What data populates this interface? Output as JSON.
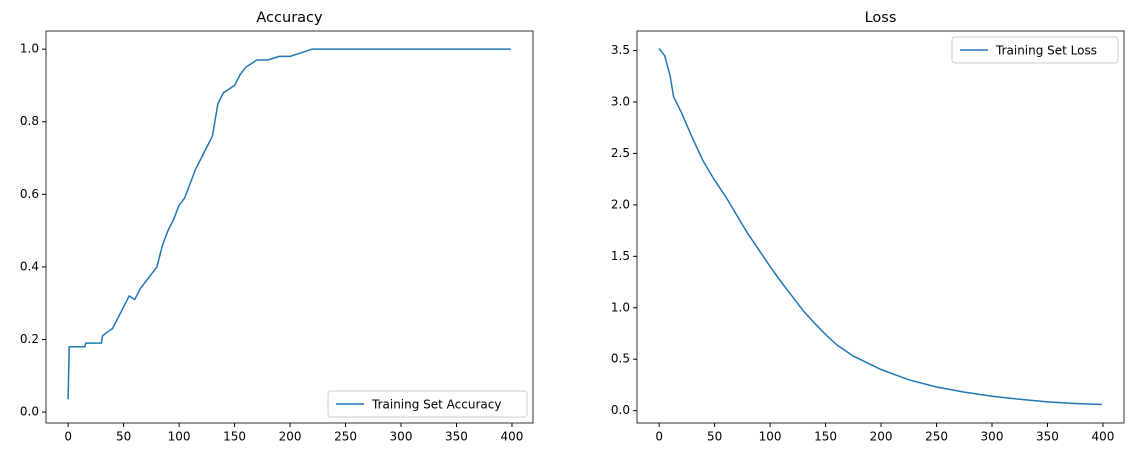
{
  "chart_data": [
    {
      "type": "line",
      "title": "Accuracy",
      "x": [
        0,
        1,
        15,
        16,
        30,
        31,
        35,
        40,
        45,
        50,
        55,
        60,
        65,
        70,
        75,
        80,
        85,
        90,
        95,
        100,
        105,
        110,
        115,
        120,
        125,
        130,
        135,
        140,
        145,
        150,
        155,
        160,
        165,
        170,
        180,
        190,
        200,
        210,
        220,
        230,
        399
      ],
      "series": [
        {
          "name": "Training Set Accuracy",
          "color": "#1f77b4",
          "values": [
            0.035,
            0.18,
            0.18,
            0.19,
            0.19,
            0.21,
            0.22,
            0.23,
            0.26,
            0.29,
            0.32,
            0.31,
            0.34,
            0.36,
            0.38,
            0.4,
            0.46,
            0.5,
            0.53,
            0.57,
            0.59,
            0.63,
            0.67,
            0.7,
            0.73,
            0.76,
            0.85,
            0.88,
            0.89,
            0.9,
            0.93,
            0.95,
            0.96,
            0.97,
            0.97,
            0.98,
            0.98,
            0.99,
            1.0,
            1.0,
            1.0
          ]
        }
      ],
      "xlim": [
        -19.95,
        418.95
      ],
      "xticks": [
        0,
        50,
        100,
        150,
        200,
        250,
        300,
        350,
        400
      ],
      "ylim": [
        -0.03,
        1.05
      ],
      "yticks": [
        {
          "value": 0,
          "label": "0.0"
        },
        {
          "value": 0.2,
          "label": "0.2"
        },
        {
          "value": 0.4,
          "label": "0.4"
        },
        {
          "value": 0.6,
          "label": "0.6"
        },
        {
          "value": 0.8,
          "label": "0.8"
        },
        {
          "value": 1,
          "label": "1.0"
        }
      ],
      "legend": "lower right"
    },
    {
      "type": "line",
      "title": "Loss",
      "x": [
        0,
        5,
        10,
        13,
        20,
        30,
        40,
        50,
        60,
        70,
        80,
        90,
        100,
        110,
        120,
        130,
        140,
        150,
        160,
        175,
        200,
        225,
        250,
        275,
        300,
        325,
        350,
        375,
        399
      ],
      "series": [
        {
          "name": "Training Set Loss",
          "color": "#1f77b4",
          "values": [
            3.52,
            3.45,
            3.25,
            3.05,
            2.9,
            2.65,
            2.42,
            2.24,
            2.08,
            1.9,
            1.72,
            1.56,
            1.4,
            1.25,
            1.11,
            0.97,
            0.85,
            0.74,
            0.64,
            0.53,
            0.4,
            0.3,
            0.23,
            0.18,
            0.14,
            0.11,
            0.085,
            0.07,
            0.06
          ]
        }
      ],
      "xlim": [
        -19.95,
        418.95
      ],
      "xticks": [
        0,
        50,
        100,
        150,
        200,
        250,
        300,
        350,
        400
      ],
      "ylim": [
        -0.12,
        3.69
      ],
      "yticks": [
        {
          "value": 0,
          "label": "0.0"
        },
        {
          "value": 0.5,
          "label": "0.5"
        },
        {
          "value": 1,
          "label": "1.0"
        },
        {
          "value": 1.5,
          "label": "1.5"
        },
        {
          "value": 2,
          "label": "2.0"
        },
        {
          "value": 2.5,
          "label": "2.5"
        },
        {
          "value": 3,
          "label": "3.0"
        },
        {
          "value": 3.5,
          "label": "3.5"
        }
      ],
      "legend": "upper right"
    }
  ]
}
